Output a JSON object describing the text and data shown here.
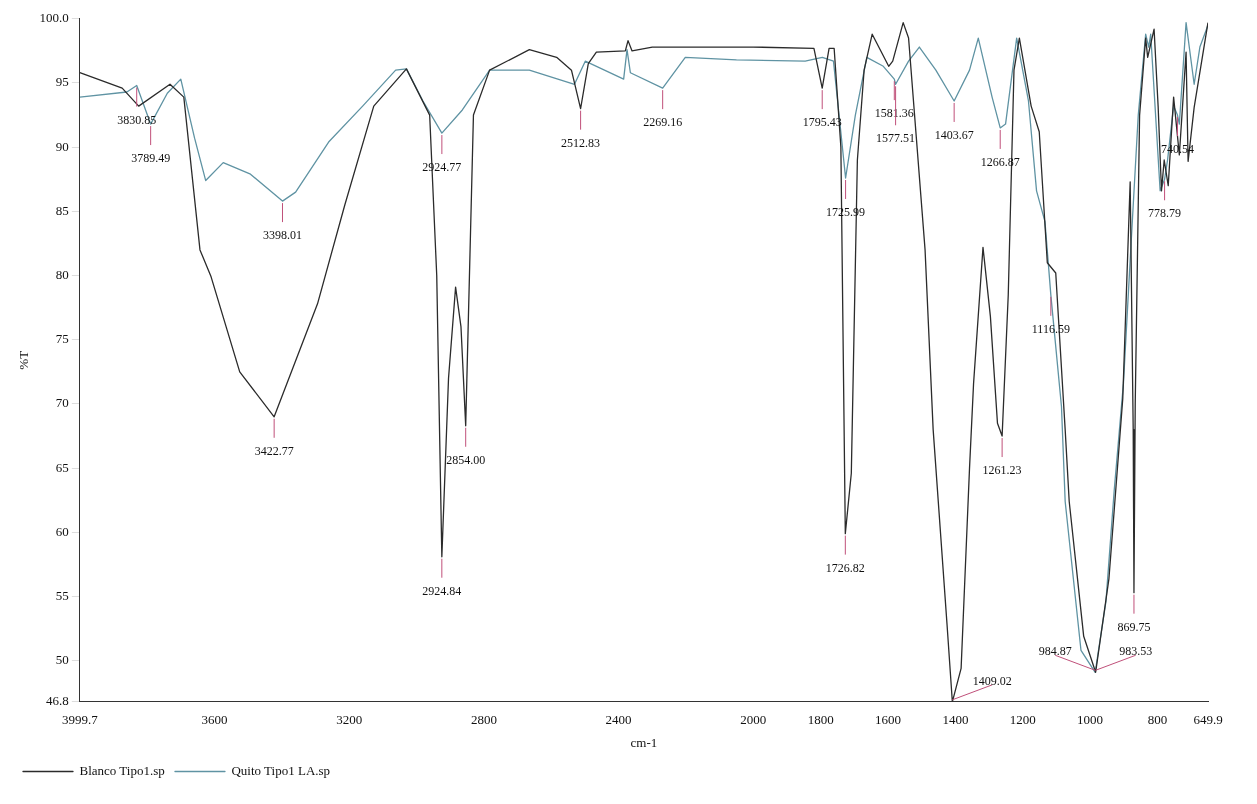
{
  "chart_data": {
    "type": "line",
    "xlabel": "cm-1",
    "ylabel": "%T",
    "xlim": [
      3999.7,
      649.9
    ],
    "ylim": [
      46.8,
      100
    ],
    "xticks": [
      3999.7,
      3600,
      3200,
      2800,
      2400,
      2000,
      1800,
      1600,
      1400,
      1200,
      1000,
      800,
      649.9
    ],
    "yticks": [
      46.8,
      50,
      55,
      60,
      65,
      70,
      75,
      80,
      85,
      90,
      95,
      {
        "value": 100,
        "label": "100.0"
      }
    ],
    "grid": false,
    "legend": "bottom left",
    "marker": "none",
    "line_style": "solid",
    "series": [
      {
        "name": "Blanco Tipo1.sp",
        "color": "#2b2b2b",
        "x": [
          3999.7,
          3874,
          3825,
          3732,
          3691,
          3643,
          3610,
          3525,
          3422.77,
          3294,
          3213,
          3127,
          3030,
          2961,
          2940,
          2924.84,
          2905,
          2884,
          2868,
          2854,
          2831,
          2783,
          2665,
          2584,
          2540,
          2512.83,
          2490,
          2466,
          2380,
          2372,
          2360,
          2300,
          2000,
          1820,
          1795.43,
          1775,
          1760,
          1740,
          1726.82,
          1709,
          1691,
          1671,
          1647,
          1598,
          1586,
          1555,
          1539,
          1490,
          1466,
          1425,
          1409.02,
          1383,
          1358,
          1346,
          1318,
          1296,
          1275,
          1261.23,
          1243,
          1226,
          1210,
          1175,
          1151,
          1127,
          1102,
          1074,
          1062,
          1019,
          983.53,
          944,
          903,
          881,
          872,
          869.75,
          866,
          853,
          835,
          829,
          810,
          798,
          788,
          780,
          768,
          752,
          735,
          715,
          709,
          691,
          650
        ],
        "values": [
          95.8,
          94.6,
          93.2,
          94.9,
          93.9,
          82,
          79.9,
          72.5,
          69,
          77.8,
          85.5,
          93.2,
          96.1,
          92.5,
          80,
          58.1,
          72,
          79.1,
          76,
          68.3,
          92.5,
          96,
          97.6,
          97,
          96,
          93,
          96.5,
          97.4,
          97.5,
          98.3,
          97.5,
          97.8,
          97.8,
          97.7,
          94.6,
          97.7,
          97.7,
          90,
          59.9,
          64.6,
          89,
          96,
          98.8,
          96.3,
          96.7,
          99.7,
          98.5,
          82,
          68,
          52.9,
          46.8,
          49.4,
          65,
          71.6,
          82.2,
          76.8,
          68.5,
          67.5,
          78.5,
          96,
          98.5,
          93.2,
          91.2,
          81,
          80.2,
          68,
          62.4,
          51.9,
          49.1,
          56.4,
          70.4,
          87.3,
          68,
          55.3,
          70,
          92.5,
          98.5,
          97,
          99.2,
          93.2,
          86.6,
          89,
          87,
          93.9,
          89.4,
          97.4,
          88.9,
          93.1,
          99.7
        ]
      },
      {
        "name": "Quito Tipo1 LA.sp",
        "color": "#5f93a3",
        "x": [
          3999.7,
          3860,
          3830.85,
          3789.49,
          3740,
          3700,
          3659,
          3626,
          3574,
          3493,
          3398.01,
          3359,
          3261,
          3160,
          3062,
          3030,
          2981,
          2924.77,
          2864,
          2783,
          2665,
          2531,
          2499,
          2385,
          2375,
          2365,
          2269.16,
          2202,
          2050,
          1846,
          1795,
          1762,
          1725.99,
          1697,
          1663,
          1614,
          1581.36,
          1577.51,
          1539,
          1507,
          1458,
          1403.67,
          1358,
          1332,
          1291,
          1266.87,
          1251,
          1218,
          1183,
          1159,
          1134,
          1116.59,
          1085,
          1074,
          1027,
          984.87,
          953,
          928,
          901,
          877,
          857,
          835,
          826,
          820,
          792,
          778.79,
          770,
          752,
          740.54,
          735,
          715,
          691,
          674,
          650
        ],
        "values": [
          93.9,
          94.3,
          94.8,
          91.8,
          94.2,
          95.3,
          90.7,
          87.4,
          88.8,
          87.9,
          85.8,
          86.5,
          90.4,
          93.2,
          96,
          96.1,
          93.6,
          91.1,
          92.9,
          96,
          96,
          94.9,
          96.7,
          95.3,
          97.6,
          95.8,
          94.6,
          97,
          96.8,
          96.7,
          97,
          96.7,
          87.6,
          92.5,
          97,
          96.3,
          95.3,
          94.9,
          96.7,
          97.8,
          96,
          93.6,
          96,
          98.5,
          93.9,
          91.5,
          91.8,
          98.5,
          93.6,
          86.6,
          84.2,
          78.5,
          69.8,
          62.4,
          50.8,
          49.1,
          54.6,
          63.4,
          71.6,
          83.1,
          92.5,
          98.8,
          97.8,
          98.8,
          86.6,
          87.5,
          89,
          93.2,
          92.5,
          91.8,
          99.7,
          94.9,
          97.8,
          99.5
        ]
      }
    ],
    "annotations": [
      {
        "text": "3830.85",
        "x": 3830.85,
        "y": 94.8
      },
      {
        "text": "3789.49",
        "x": 3789.49,
        "y": 91.8
      },
      {
        "text": "3398.01",
        "x": 3398.01,
        "y": 85.8
      },
      {
        "text": "3422.77",
        "x": 3422.77,
        "y": 69
      },
      {
        "text": "2924.77",
        "x": 2924.77,
        "y": 91.1
      },
      {
        "text": "2924.84",
        "x": 2924.84,
        "y": 58.1
      },
      {
        "text": "2854.00",
        "x": 2854,
        "y": 68.3
      },
      {
        "text": "2512.83",
        "x": 2512.83,
        "y": 93
      },
      {
        "text": "2269.16",
        "x": 2269.16,
        "y": 94.6
      },
      {
        "text": "1795.43",
        "x": 1795.43,
        "y": 94.6
      },
      {
        "text": "1725.99",
        "x": 1725.99,
        "y": 87.6
      },
      {
        "text": "1726.82",
        "x": 1726.82,
        "y": 59.9
      },
      {
        "text": "1581.36",
        "x": 1581.36,
        "y": 95.3
      },
      {
        "text": "1577.51",
        "x": 1577.51,
        "y": 94.9
      },
      {
        "text": "1409.02",
        "x": 1409.02,
        "y": 46.8
      },
      {
        "text": "1403.67",
        "x": 1403.67,
        "y": 93.6
      },
      {
        "text": "1266.87",
        "x": 1266.87,
        "y": 91.5
      },
      {
        "text": "1261.23",
        "x": 1261.23,
        "y": 67.5
      },
      {
        "text": "1116.59",
        "x": 1116.59,
        "y": 78.5
      },
      {
        "text": "983.53",
        "x": 983.53,
        "y": 49.1
      },
      {
        "text": "984.87",
        "x": 984.87,
        "y": 49.1
      },
      {
        "text": "869.75",
        "x": 869.75,
        "y": 55.3
      },
      {
        "text": "778.79",
        "x": 778.79,
        "y": 87.5
      },
      {
        "text": "740.54",
        "x": 740.54,
        "y": 92.5
      }
    ]
  }
}
